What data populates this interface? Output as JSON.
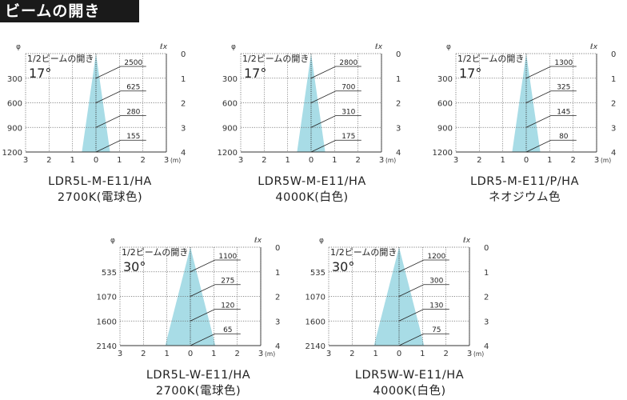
{
  "header": {
    "title": "ビームの開き"
  },
  "chart_data": [
    {
      "type": "beam",
      "model": "LDR5L-M-E11/HA",
      "variant": "2700K(電球色)",
      "beam_label": "1/2ビームの開き",
      "angle": "17°",
      "phi_label": "φ",
      "lux_label": "ℓx",
      "distance_ticks": [
        "0",
        "1",
        "2",
        "3",
        "4"
      ],
      "distance_unit": "(m)",
      "diameters": [
        "300",
        "600",
        "900",
        "1200"
      ],
      "illuminance": [
        "2500",
        "625",
        "280",
        "155"
      ],
      "x_ticks": [
        "3",
        "2",
        "1",
        "0",
        "1",
        "2",
        "3"
      ],
      "beam_halfwidth_m": [
        0,
        0.15,
        0.3,
        0.45,
        0.6
      ]
    },
    {
      "type": "beam",
      "model": "LDR5W-M-E11/HA",
      "variant": "4000K(白色)",
      "beam_label": "1/2ビームの開き",
      "angle": "17°",
      "phi_label": "φ",
      "lux_label": "ℓx",
      "distance_ticks": [
        "0",
        "1",
        "2",
        "3",
        "4"
      ],
      "distance_unit": "(m)",
      "diameters": [
        "300",
        "600",
        "900",
        "1200"
      ],
      "illuminance": [
        "2800",
        "700",
        "310",
        "175"
      ],
      "x_ticks": [
        "3",
        "2",
        "1",
        "0",
        "1",
        "2",
        "3"
      ],
      "beam_halfwidth_m": [
        0,
        0.15,
        0.3,
        0.45,
        0.6
      ]
    },
    {
      "type": "beam",
      "model": "LDR5-M-E11/P/HA",
      "variant": "ネオジウム色",
      "beam_label": "1/2ビームの開き",
      "angle": "17°",
      "phi_label": "φ",
      "lux_label": "ℓx",
      "distance_ticks": [
        "0",
        "1",
        "2",
        "3",
        "4"
      ],
      "distance_unit": "(m)",
      "diameters": [
        "300",
        "600",
        "900",
        "1200"
      ],
      "illuminance": [
        "1300",
        "325",
        "145",
        "80"
      ],
      "x_ticks": [
        "3",
        "2",
        "1",
        "0",
        "1",
        "2",
        "3"
      ],
      "beam_halfwidth_m": [
        0,
        0.15,
        0.3,
        0.45,
        0.6
      ]
    },
    {
      "type": "beam",
      "model": "LDR5L-W-E11/HA",
      "variant": "2700K(電球色)",
      "beam_label": "1/2ビームの開き",
      "angle": "30°",
      "phi_label": "φ",
      "lux_label": "ℓx",
      "distance_ticks": [
        "0",
        "1",
        "2",
        "3",
        "4"
      ],
      "distance_unit": "(m)",
      "diameters": [
        "535",
        "1070",
        "1600",
        "2140"
      ],
      "illuminance": [
        "1100",
        "275",
        "120",
        "65"
      ],
      "x_ticks": [
        "3",
        "2",
        "1",
        "0",
        "1",
        "2",
        "3"
      ],
      "beam_halfwidth_m": [
        0,
        0.2675,
        0.535,
        0.8,
        1.07
      ]
    },
    {
      "type": "beam",
      "model": "LDR5W-W-E11/HA",
      "variant": "4000K(白色)",
      "beam_label": "1/2ビームの開き",
      "angle": "30°",
      "phi_label": "φ",
      "lux_label": "ℓx",
      "distance_ticks": [
        "0",
        "1",
        "2",
        "3",
        "4"
      ],
      "distance_unit": "(m)",
      "diameters": [
        "535",
        "1070",
        "1600",
        "2140"
      ],
      "illuminance": [
        "1200",
        "300",
        "130",
        "75"
      ],
      "x_ticks": [
        "3",
        "2",
        "1",
        "0",
        "1",
        "2",
        "3"
      ],
      "beam_halfwidth_m": [
        0,
        0.2675,
        0.535,
        0.8,
        1.07
      ]
    }
  ]
}
